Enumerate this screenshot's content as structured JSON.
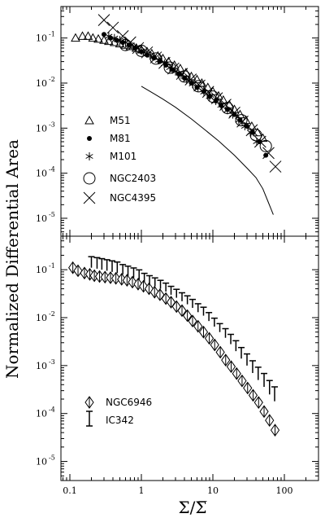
{
  "chart_data": {
    "type": "scatter",
    "x_scale": "log",
    "y_scale": "log",
    "xlim": [
      0.075,
      300
    ],
    "ylabel": "Normalized Differential Area",
    "xlabel": "Σ/Σ̅",
    "x_ticks": [
      {
        "value": 0.1,
        "label": "0.1"
      },
      {
        "value": 1,
        "label": "1"
      },
      {
        "value": 10,
        "label": "10"
      },
      {
        "value": 100,
        "label": "100"
      }
    ],
    "panels": [
      {
        "ylim": [
          4e-06,
          0.5
        ],
        "y_ticks": [
          {
            "value": 0.1,
            "base": "10",
            "exp": "-1"
          },
          {
            "value": 0.01,
            "base": "10",
            "exp": "-2"
          },
          {
            "value": 0.001,
            "base": "10",
            "exp": "-3"
          },
          {
            "value": 0.0001,
            "base": "10",
            "exp": "-4"
          },
          {
            "value": 1e-05,
            "base": "10",
            "exp": "-5"
          }
        ],
        "legend_position": "left",
        "series": [
          {
            "name": "M51",
            "marker": "triangle",
            "x": [
              0.12,
              0.15,
              0.18,
              0.21,
              0.25,
              0.3,
              0.35,
              0.42,
              0.5,
              0.6,
              0.7,
              0.85,
              1.0,
              1.2,
              1.4,
              1.7,
              2.0,
              2.4,
              2.9,
              3.5,
              4.2,
              5.0,
              6.0,
              7.0,
              8.5,
              10,
              12,
              14,
              17,
              20,
              24,
              29,
              35,
              42,
              50
            ],
            "y": [
              0.1,
              0.11,
              0.11,
              0.1,
              0.095,
              0.09,
              0.085,
              0.08,
              0.075,
              0.07,
              0.065,
              0.06,
              0.055,
              0.05,
              0.045,
              0.04,
              0.035,
              0.03,
              0.025,
              0.021,
              0.017,
              0.014,
              0.012,
              0.01,
              0.008,
              0.0065,
              0.0052,
              0.0042,
              0.0033,
              0.0026,
              0.002,
              0.0015,
              0.0011,
              0.0008,
              0.0006
            ]
          },
          {
            "name": "M81",
            "marker": "dot",
            "x": [
              0.3,
              0.37,
              0.45,
              0.55,
              0.67,
              0.8,
              1.0,
              1.2,
              1.5,
              1.8,
              2.2,
              2.7,
              3.3,
              4.0,
              5.0,
              6.0,
              7.5,
              9.0,
              11,
              13,
              16,
              20,
              24,
              30,
              36,
              45,
              55
            ],
            "y": [
              0.12,
              0.1,
              0.09,
              0.08,
              0.07,
              0.06,
              0.05,
              0.042,
              0.036,
              0.03,
              0.025,
              0.02,
              0.016,
              0.013,
              0.01,
              0.008,
              0.0065,
              0.005,
              0.004,
              0.0032,
              0.0026,
              0.002,
              0.0015,
              0.0011,
              0.0008,
              0.0005,
              0.00025
            ]
          },
          {
            "name": "M101",
            "marker": "asterisk",
            "x": [
              0.35,
              0.42,
              0.5,
              0.6,
              0.72,
              0.85,
              1.0,
              1.2,
              1.45,
              1.75,
              2.1,
              2.5,
              3.0,
              3.6,
              4.3,
              5.2,
              6.2,
              7.5,
              9.0,
              11,
              13,
              16,
              19,
              23,
              28,
              34,
              41
            ],
            "y": [
              0.11,
              0.1,
              0.09,
              0.08,
              0.07,
              0.06,
              0.052,
              0.045,
              0.038,
              0.032,
              0.027,
              0.022,
              0.018,
              0.015,
              0.012,
              0.0095,
              0.0078,
              0.0063,
              0.005,
              0.004,
              0.0032,
              0.0025,
              0.002,
              0.0015,
              0.0011,
              0.0008,
              0.0005
            ]
          },
          {
            "name": "NGC2403",
            "marker": "circle",
            "x": [
              0.6,
              1.0,
              1.6,
              2.5,
              4.0,
              6.3,
              10,
              16,
              25,
              40,
              55
            ],
            "y": [
              0.07,
              0.052,
              0.035,
              0.022,
              0.014,
              0.0085,
              0.005,
              0.0028,
              0.0015,
              0.0007,
              0.0004
            ]
          },
          {
            "name": "NGC4395",
            "marker": "cross",
            "x": [
              0.3,
              0.4,
              0.55,
              0.7,
              0.9,
              1.2,
              1.6,
              2.1,
              2.8,
              3.7,
              4.9,
              6.5,
              8.6,
              11.4,
              15,
              20,
              26,
              35,
              46,
              60,
              75
            ],
            "y": [
              0.25,
              0.17,
              0.11,
              0.08,
              0.06,
              0.048,
              0.037,
              0.028,
              0.021,
              0.016,
              0.012,
              0.0088,
              0.0064,
              0.0046,
              0.0033,
              0.0022,
              0.0014,
              0.0009,
              0.0005,
              0.00028,
              0.00014
            ]
          }
        ],
        "reference_curve": {
          "x": [
            1,
            1.5,
            2,
            3,
            5,
            8,
            12,
            20,
            30,
            40,
            50,
            60,
            70
          ],
          "y": [
            0.0085,
            0.0058,
            0.0044,
            0.0029,
            0.0016,
            0.00088,
            0.00052,
            0.00025,
            0.00013,
            8e-05,
            4.5e-05,
            2.2e-05,
            1.2e-05
          ]
        }
      },
      {
        "ylim": [
          4e-06,
          0.5
        ],
        "y_ticks": [
          {
            "value": 0.1,
            "base": "10",
            "exp": "-1"
          },
          {
            "value": 0.01,
            "base": "10",
            "exp": "-2"
          },
          {
            "value": 0.001,
            "base": "10",
            "exp": "-3"
          },
          {
            "value": 0.0001,
            "base": "10",
            "exp": "-4"
          },
          {
            "value": 1e-05,
            "base": "10",
            "exp": "-5"
          }
        ],
        "legend_position": "bottom-left",
        "series": [
          {
            "name": "NGC6946",
            "marker": "diamond-bar",
            "x": [
              0.11,
              0.13,
              0.16,
              0.19,
              0.22,
              0.26,
              0.31,
              0.37,
              0.44,
              0.53,
              0.63,
              0.75,
              0.9,
              1.07,
              1.28,
              1.53,
              1.82,
              2.2,
              2.6,
              3.1,
              3.7,
              4.4,
              5.2,
              6.2,
              7.4,
              8.9,
              10.6,
              12.7,
              15.1,
              18,
              21.5,
              25.6,
              30.6,
              36.5,
              43.6,
              52,
              62,
              74
            ],
            "y": [
              0.11,
              0.095,
              0.085,
              0.08,
              0.075,
              0.072,
              0.07,
              0.068,
              0.066,
              0.063,
              0.06,
              0.055,
              0.05,
              0.045,
              0.04,
              0.034,
              0.03,
              0.025,
              0.021,
              0.017,
              0.014,
              0.011,
              0.0085,
              0.0066,
              0.005,
              0.0037,
              0.0027,
              0.0019,
              0.0013,
              0.00095,
              0.00068,
              0.00048,
              0.00034,
              0.00024,
              0.00017,
              0.00011,
              7.2e-05,
              4.5e-05
            ]
          },
          {
            "name": "IC342",
            "marker": "errorbar",
            "x": [
              0.2,
              0.24,
              0.28,
              0.33,
              0.39,
              0.46,
              0.55,
              0.65,
              0.78,
              0.93,
              1.1,
              1.3,
              1.55,
              1.85,
              2.2,
              2.6,
              3.1,
              3.7,
              4.4,
              5.2,
              6.2,
              7.4,
              8.8,
              10.5,
              12.5,
              15,
              17.8,
              21,
              25,
              30,
              36,
              43,
              52,
              62,
              73
            ],
            "y": [
              0.11,
              0.105,
              0.1,
              0.095,
              0.09,
              0.085,
              0.08,
              0.074,
              0.068,
              0.062,
              0.056,
              0.05,
              0.045,
              0.04,
              0.035,
              0.03,
              0.026,
              0.022,
              0.019,
              0.016,
              0.013,
              0.011,
              0.0085,
              0.0065,
              0.005,
              0.0038,
              0.0028,
              0.002,
              0.0014,
              0.001,
              0.0007,
              0.0005,
              0.00036,
              0.00025,
              0.00018
            ],
            "err_up_factor": [
              1.7,
              1.7,
              1.7,
              1.7,
              1.7,
              1.7,
              1.6,
              1.6,
              1.6,
              1.6,
              1.5,
              1.5,
              1.5,
              1.5,
              1.5,
              1.5,
              1.5,
              1.5,
              1.5,
              1.5,
              1.5,
              1.5,
              1.5,
              1.5,
              1.5,
              1.55,
              1.6,
              1.65,
              1.7,
              1.75,
              1.8,
              1.85,
              1.9,
              1.95,
              2.0
            ]
          }
        ]
      }
    ]
  }
}
